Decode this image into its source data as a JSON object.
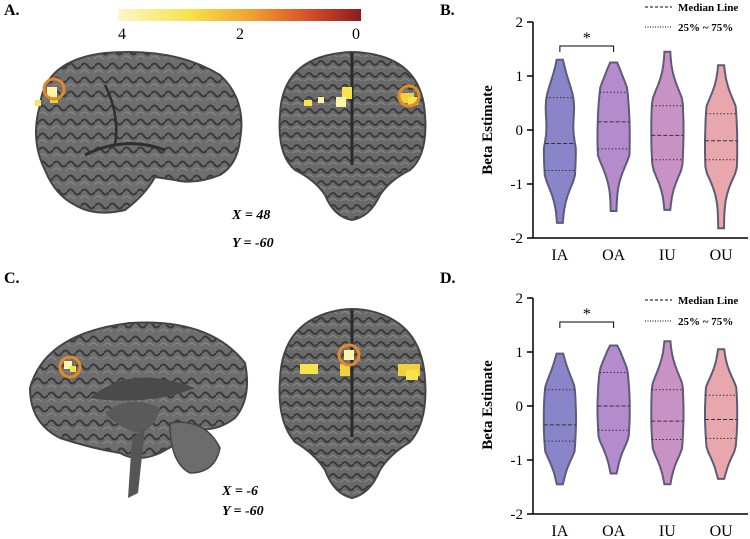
{
  "labels": {
    "a": "A.",
    "b": "B.",
    "c": "C.",
    "d": "D."
  },
  "colorbar": {
    "ticks": [
      "4",
      "2",
      "0"
    ],
    "colors": [
      "#fbf8c6",
      "#f6e24a",
      "#f0a030",
      "#d9502a",
      "#8e1a20"
    ]
  },
  "coords_top": {
    "x": "X = 48",
    "y": "Y = -60"
  },
  "coords_bottom": {
    "x": "X = -6",
    "y": "Y = -60"
  },
  "legend": {
    "median": "Median Line",
    "quartiles": "25% ~ 75%"
  },
  "significance": "*",
  "chart_data": [
    {
      "type": "violin",
      "panel": "B.",
      "ylabel": "Beta Estimate",
      "ylim": [
        -2,
        2
      ],
      "yticks": [
        -2,
        -1,
        0,
        1,
        2
      ],
      "categories": [
        "IA",
        "OA",
        "IU",
        "OU"
      ],
      "colors": [
        "#8a85c9",
        "#b48bcc",
        "#c992c4",
        "#e8a7ad"
      ],
      "series": [
        {
          "name": "IA",
          "min": -1.72,
          "max": 1.3,
          "q1": -0.75,
          "median": -0.25,
          "q3": 0.6
        },
        {
          "name": "OA",
          "min": -1.5,
          "max": 1.25,
          "q1": -0.35,
          "median": 0.15,
          "q3": 0.7
        },
        {
          "name": "IU",
          "min": -1.48,
          "max": 1.45,
          "q1": -0.55,
          "median": -0.1,
          "q3": 0.45
        },
        {
          "name": "OU",
          "min": -1.82,
          "max": 1.2,
          "q1": -0.55,
          "median": -0.2,
          "q3": 0.3
        }
      ],
      "annotations": [
        {
          "between": [
            "IA",
            "OA"
          ],
          "text": "*"
        }
      ]
    },
    {
      "type": "violin",
      "panel": "D.",
      "ylabel": "Beta Estimate",
      "ylim": [
        -2,
        2
      ],
      "yticks": [
        -2,
        -1,
        0,
        1,
        2
      ],
      "categories": [
        "IA",
        "OA",
        "IU",
        "OU"
      ],
      "colors": [
        "#8a85c9",
        "#b48bcc",
        "#c992c4",
        "#e8a7ad"
      ],
      "series": [
        {
          "name": "IA",
          "min": -1.45,
          "max": 0.97,
          "q1": -0.65,
          "median": -0.35,
          "q3": 0.3
        },
        {
          "name": "OA",
          "min": -1.25,
          "max": 1.12,
          "q1": -0.45,
          "median": 0.0,
          "q3": 0.62
        },
        {
          "name": "IU",
          "min": -1.45,
          "max": 1.2,
          "q1": -0.62,
          "median": -0.28,
          "q3": 0.3
        },
        {
          "name": "OU",
          "min": -1.35,
          "max": 1.05,
          "q1": -0.6,
          "median": -0.25,
          "q3": 0.2
        }
      ],
      "annotations": [
        {
          "between": [
            "IA",
            "OA"
          ],
          "text": "*"
        }
      ]
    }
  ]
}
